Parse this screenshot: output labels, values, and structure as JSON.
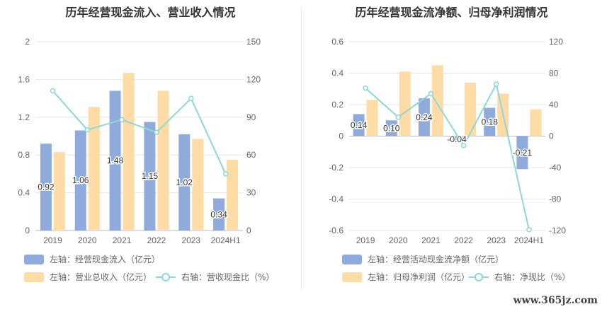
{
  "watermark": "www.365jz.com",
  "colors": {
    "blue": "#8eabdb",
    "orange": "#ffdca6",
    "line": "#8dd7d9",
    "grid": "#e6e6e6",
    "text": "#666666"
  },
  "chart_data": [
    {
      "type": "bar",
      "title": "历年经营现金流入、营业收入情况",
      "categories": [
        "2019",
        "2020",
        "2021",
        "2022",
        "2023",
        "2024H1"
      ],
      "series": [
        {
          "name": "左轴：经营现金流入（亿元）",
          "axis": "left",
          "kind": "bar",
          "values": [
            0.92,
            1.06,
            1.48,
            1.15,
            1.02,
            0.34
          ],
          "labels": [
            "0.92",
            "1.06",
            "1.48",
            "1.15",
            "1.02",
            "0.34"
          ]
        },
        {
          "name": "左轴：营业总收入（亿元）",
          "axis": "left",
          "kind": "bar",
          "values": [
            0.83,
            1.31,
            1.67,
            1.48,
            0.97,
            0.75
          ]
        },
        {
          "name": "右轴：营收现金比（%）",
          "axis": "right",
          "kind": "line",
          "values": [
            111,
            80,
            88,
            78,
            105,
            45
          ]
        }
      ],
      "left_axis": {
        "ylim": [
          0,
          2
        ],
        "ticks": [
          "0",
          "0.4",
          "0.8",
          "1.2",
          "1.6",
          "2"
        ]
      },
      "right_axis": {
        "ylim": [
          0,
          150
        ],
        "ticks": [
          "0",
          "30",
          "60",
          "90",
          "120",
          "150"
        ]
      },
      "legend_position": "bottom-left",
      "grid": true
    },
    {
      "type": "bar",
      "title": "历年经营现金流净额、归母净利润情况",
      "categories": [
        "2019",
        "2020",
        "2021",
        "2022",
        "2023",
        "2024H1"
      ],
      "series": [
        {
          "name": "左轴：经营活动现金流净额（亿元）",
          "axis": "left",
          "kind": "bar",
          "values": [
            0.14,
            0.1,
            0.24,
            -0.04,
            0.18,
            -0.21
          ],
          "labels": [
            "0.14",
            "0.10",
            "0.24",
            "-0.04",
            "0.18",
            "-0.21"
          ]
        },
        {
          "name": "左轴：归母净利润（亿元）",
          "axis": "left",
          "kind": "bar",
          "values": [
            0.23,
            0.41,
            0.45,
            0.34,
            0.27,
            0.17
          ]
        },
        {
          "name": "右轴：净现比（%）",
          "axis": "right",
          "kind": "line",
          "values": [
            61,
            24,
            54,
            -12,
            66,
            -119
          ]
        }
      ],
      "left_axis": {
        "ylim": [
          -0.6,
          0.6
        ],
        "ticks": [
          "-0.6",
          "-0.4",
          "-0.2",
          "0",
          "0.2",
          "0.4",
          "0.6"
        ]
      },
      "right_axis": {
        "ylim": [
          -120,
          120
        ],
        "ticks": [
          "-120",
          "-80",
          "-40",
          "0",
          "40",
          "80",
          "120"
        ]
      },
      "legend_position": "bottom-left",
      "grid": true
    }
  ]
}
